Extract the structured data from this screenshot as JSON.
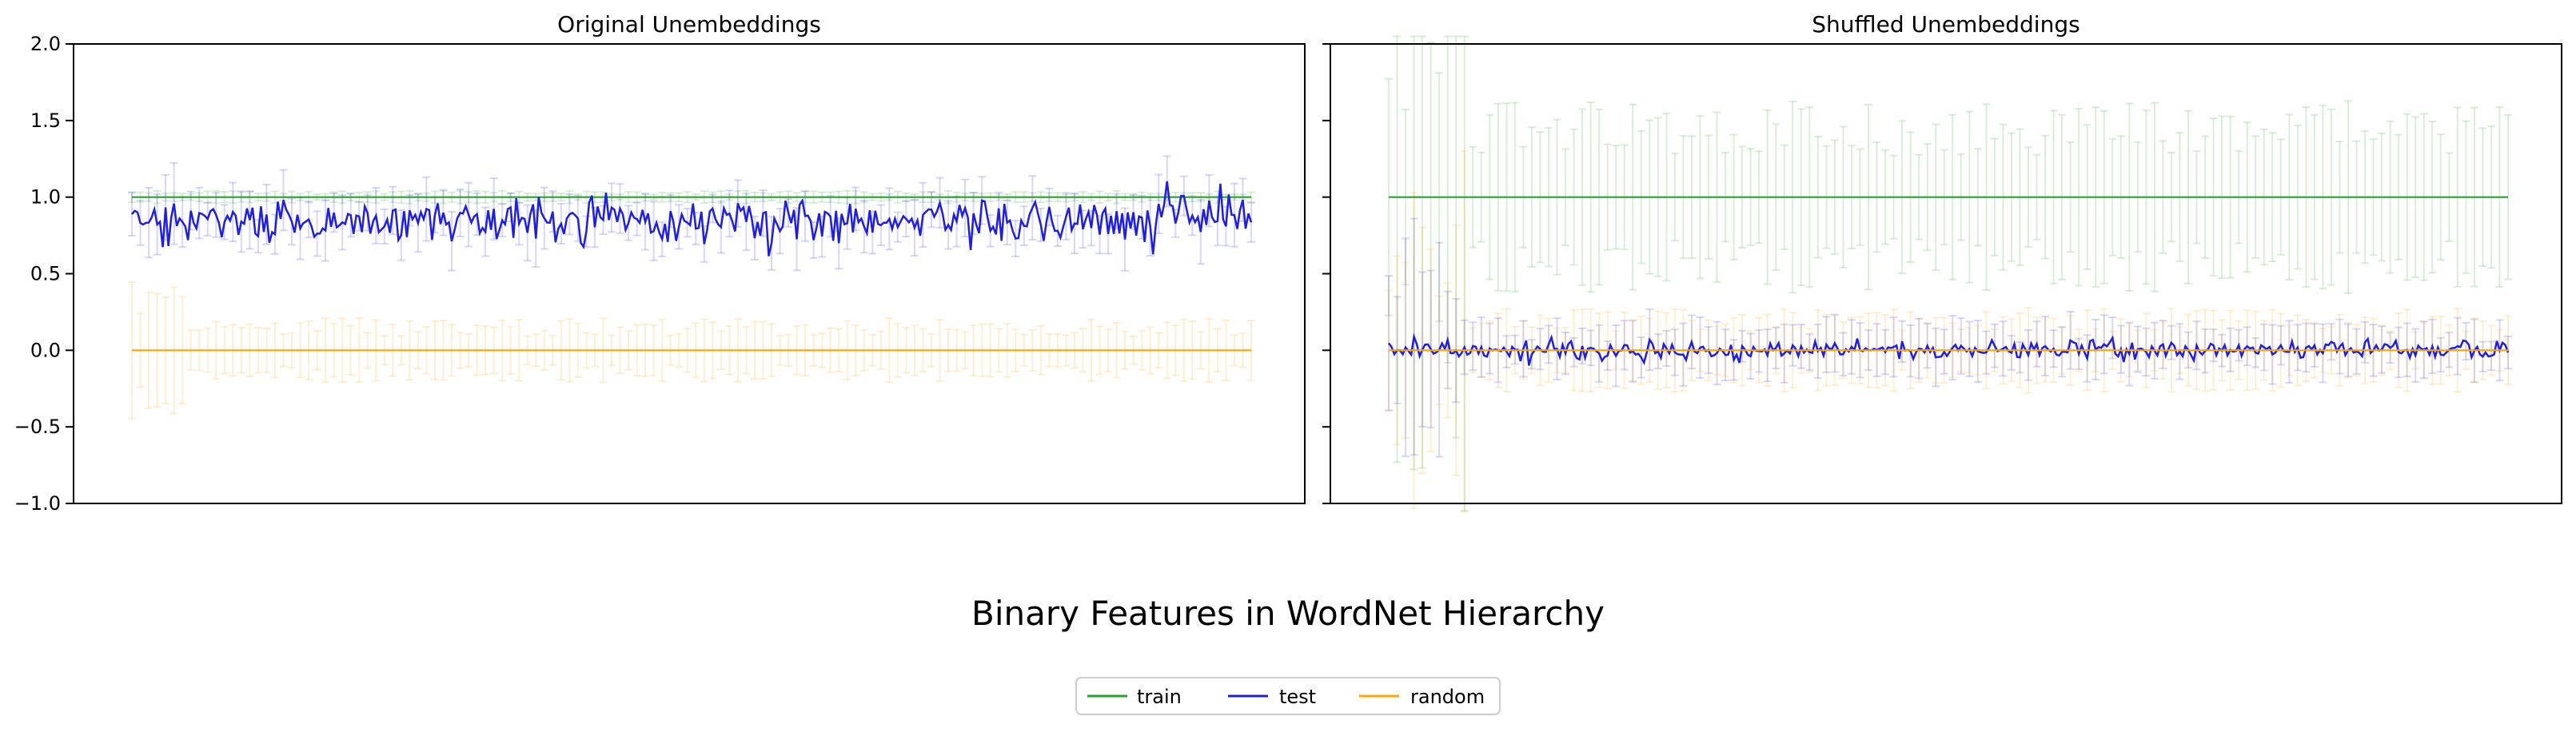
{
  "figure_title": "Binary Features in WordNet Hierarchy",
  "legend": {
    "placement": "bottom-center",
    "entries": [
      {
        "label": "train",
        "color": "#2ca02c"
      },
      {
        "label": "test",
        "color": "#1f1fdd"
      },
      {
        "label": "random",
        "color": "#ffa500"
      }
    ]
  },
  "chart_data": [
    {
      "type": "line",
      "title": "Original Unembeddings",
      "xlabel": "",
      "ylabel": "",
      "ylim": [
        -1.0,
        2.0
      ],
      "yticks": [
        "2.0",
        "1.5",
        "1.0",
        "0.5",
        "0.0",
        "−0.5",
        "−1.0"
      ],
      "yticks_visible": true,
      "grid": false,
      "n_points": 400,
      "error_bars": true,
      "series": [
        {
          "name": "train",
          "color": "#2ca02c",
          "mean_level": 1.0,
          "fluctuation": 0.0,
          "error_halfwidth": 0.03
        },
        {
          "name": "test",
          "color": "#1f1fdd",
          "mean_level": 0.85,
          "fluctuation": 0.07,
          "error_halfwidth": 0.15
        },
        {
          "name": "random",
          "color": "#ffa500",
          "mean_level": 0.0,
          "fluctuation": 0.0,
          "error_halfwidth": 0.15
        }
      ]
    },
    {
      "type": "line",
      "title": "Shuffled Unembeddings",
      "xlabel": "",
      "ylabel": "",
      "ylim": [
        -1.0,
        2.0
      ],
      "yticks_visible": false,
      "grid": false,
      "n_points": 400,
      "error_bars": true,
      "series": [
        {
          "name": "train",
          "color": "#2ca02c",
          "mean_level": 1.0,
          "fluctuation": 0.0,
          "error_halfwidth": 0.45
        },
        {
          "name": "test",
          "color": "#1f1fdd",
          "mean_level": 0.0,
          "fluctuation": 0.03,
          "error_halfwidth": 0.15
        },
        {
          "name": "random",
          "color": "#ffa500",
          "mean_level": 0.0,
          "fluctuation": 0.0,
          "error_halfwidth": 0.2
        }
      ]
    }
  ]
}
